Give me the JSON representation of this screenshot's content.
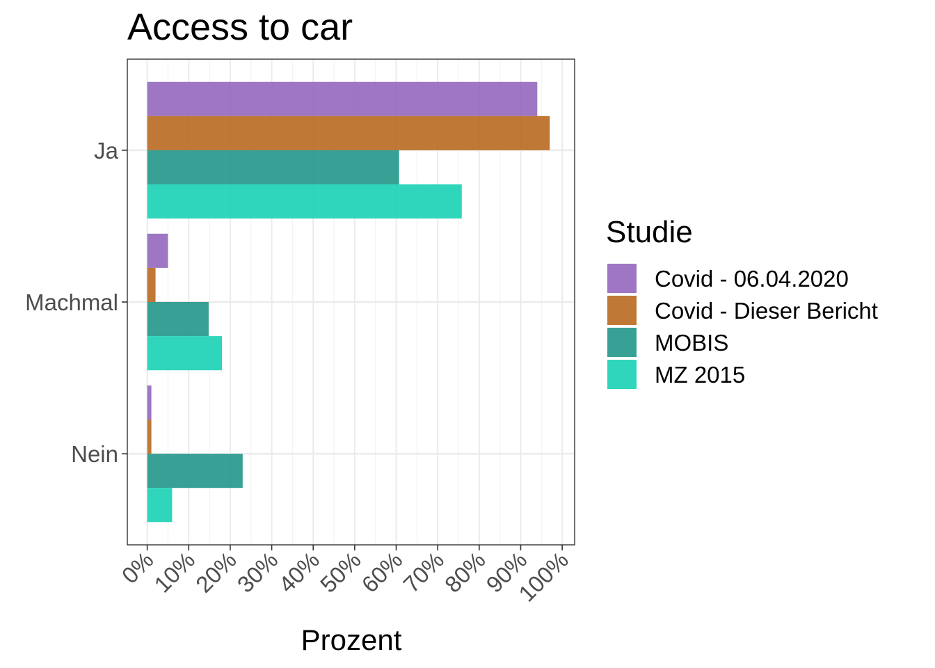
{
  "chart_data": {
    "type": "bar",
    "orientation": "horizontal",
    "title": "Access to car",
    "xlabel": "Prozent",
    "ylabel": "",
    "xlim": [
      -0.048,
      1.03
    ],
    "x_ticks": [
      0,
      0.1,
      0.2,
      0.3,
      0.4,
      0.5,
      0.6,
      0.7,
      0.8,
      0.9,
      1.0
    ],
    "x_tick_labels": [
      "0%",
      "10%",
      "20%",
      "30%",
      "40%",
      "50%",
      "60%",
      "70%",
      "80%",
      "90%",
      "100%"
    ],
    "categories": [
      "Ja",
      "Machmal",
      "Nein"
    ],
    "grid": true,
    "legend": {
      "title": "Studie",
      "position": "right"
    },
    "series": [
      {
        "name": "Covid - 06.04.2020",
        "color": "#9467bd",
        "values": [
          0.94,
          0.05,
          0.01
        ]
      },
      {
        "name": "Covid - Dieser Bericht",
        "color": "#b8691f",
        "values": [
          0.97,
          0.02,
          0.01
        ]
      },
      {
        "name": "MOBIS",
        "color": "#229688",
        "values": [
          0.607,
          0.148,
          0.23
        ]
      },
      {
        "name": "MZ 2015",
        "color": "#19d1b4",
        "values": [
          0.758,
          0.18,
          0.06
        ]
      }
    ]
  }
}
